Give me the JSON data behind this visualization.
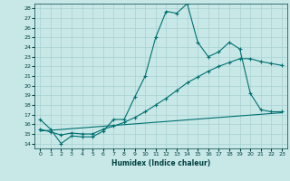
{
  "title": "",
  "xlabel": "Humidex (Indice chaleur)",
  "background_color": "#c8e8e8",
  "grid_color": "#a8d0d0",
  "line_color": "#007070",
  "xlim": [
    -0.5,
    23.5
  ],
  "ylim": [
    13.5,
    28.5
  ],
  "yticks": [
    14,
    15,
    16,
    17,
    18,
    19,
    20,
    21,
    22,
    23,
    24,
    25,
    26,
    27,
    28
  ],
  "xticks": [
    0,
    1,
    2,
    3,
    4,
    5,
    6,
    7,
    8,
    9,
    10,
    11,
    12,
    13,
    14,
    15,
    16,
    17,
    18,
    19,
    20,
    21,
    22,
    23
  ],
  "series1_x": [
    0,
    1,
    2,
    3,
    4,
    5,
    6,
    7,
    8,
    9,
    10,
    11,
    12,
    13,
    14,
    15,
    16,
    17,
    18,
    19,
    20,
    21,
    22,
    23
  ],
  "series1_y": [
    16.5,
    15.5,
    14.0,
    14.8,
    14.7,
    14.7,
    15.3,
    16.5,
    16.5,
    18.8,
    21.0,
    25.0,
    27.7,
    27.5,
    28.5,
    24.5,
    23.0,
    23.5,
    24.5,
    23.8,
    19.2,
    17.5,
    17.3,
    17.3
  ],
  "series2_x": [
    0,
    1,
    2,
    3,
    4,
    5,
    6,
    7,
    8,
    9,
    10,
    11,
    12,
    13,
    14,
    15,
    16,
    17,
    18,
    19,
    20,
    21,
    22,
    23
  ],
  "series2_y": [
    15.5,
    15.2,
    14.9,
    15.1,
    15.0,
    15.0,
    15.5,
    15.8,
    16.2,
    16.7,
    17.3,
    18.0,
    18.7,
    19.5,
    20.3,
    20.9,
    21.5,
    22.0,
    22.4,
    22.8,
    22.8,
    22.5,
    22.3,
    22.1
  ],
  "series3_x": [
    0,
    23
  ],
  "series3_y": [
    15.3,
    17.2
  ]
}
